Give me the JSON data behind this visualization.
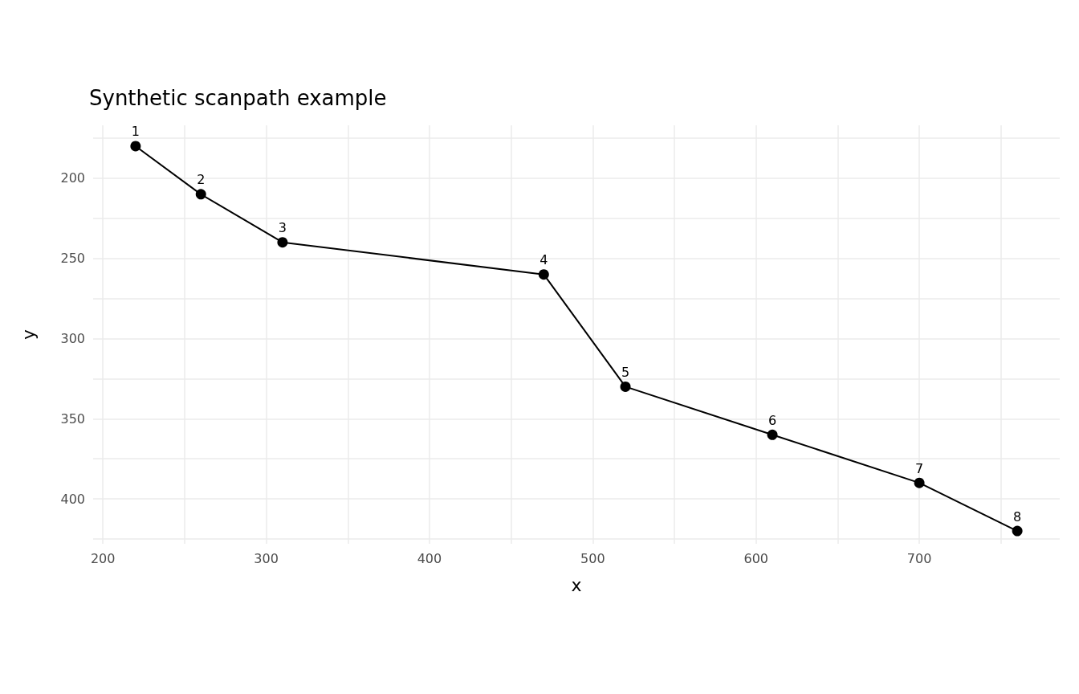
{
  "chart_data": {
    "type": "line",
    "title": "Synthetic scanpath example",
    "xlabel": "x",
    "ylabel": "y",
    "x": [
      220,
      260,
      310,
      470,
      520,
      610,
      700,
      760
    ],
    "series": [
      {
        "color": "#000000",
        "values": [
          180,
          210,
          240,
          260,
          330,
          360,
          390,
          420
        ]
      }
    ],
    "annotations": [
      {
        "text": "1",
        "x": 220,
        "y": 180
      },
      {
        "text": "2",
        "x": 260,
        "y": 210
      },
      {
        "text": "3",
        "x": 310,
        "y": 240
      },
      {
        "text": "4",
        "x": 470,
        "y": 260
      },
      {
        "text": "5",
        "x": 520,
        "y": 330
      },
      {
        "text": "6",
        "x": 610,
        "y": 360
      },
      {
        "text": "7",
        "x": 700,
        "y": 390
      },
      {
        "text": "8",
        "x": 760,
        "y": 420
      }
    ],
    "xlim": [
      194,
      786
    ],
    "ylim": [
      428,
      167
    ],
    "xticks": [
      200,
      {
        "value": 250,
        "label": null
      },
      300,
      {
        "value": 350,
        "label": null
      },
      400,
      {
        "value": 450,
        "label": null
      },
      500,
      {
        "value": 550,
        "label": null
      },
      600,
      {
        "value": 650,
        "label": null
      },
      700,
      {
        "value": 750,
        "label": null
      }
    ],
    "yticks": [
      {
        "value": 175,
        "label": null
      },
      200,
      {
        "value": 225,
        "label": null
      },
      250,
      {
        "value": 275,
        "label": null
      },
      300,
      {
        "value": 325,
        "label": null
      },
      350,
      {
        "value": 375,
        "label": null
      },
      400,
      {
        "value": 425,
        "label": null
      }
    ],
    "grid": true,
    "marker": "circle",
    "line_style": "solid"
  }
}
